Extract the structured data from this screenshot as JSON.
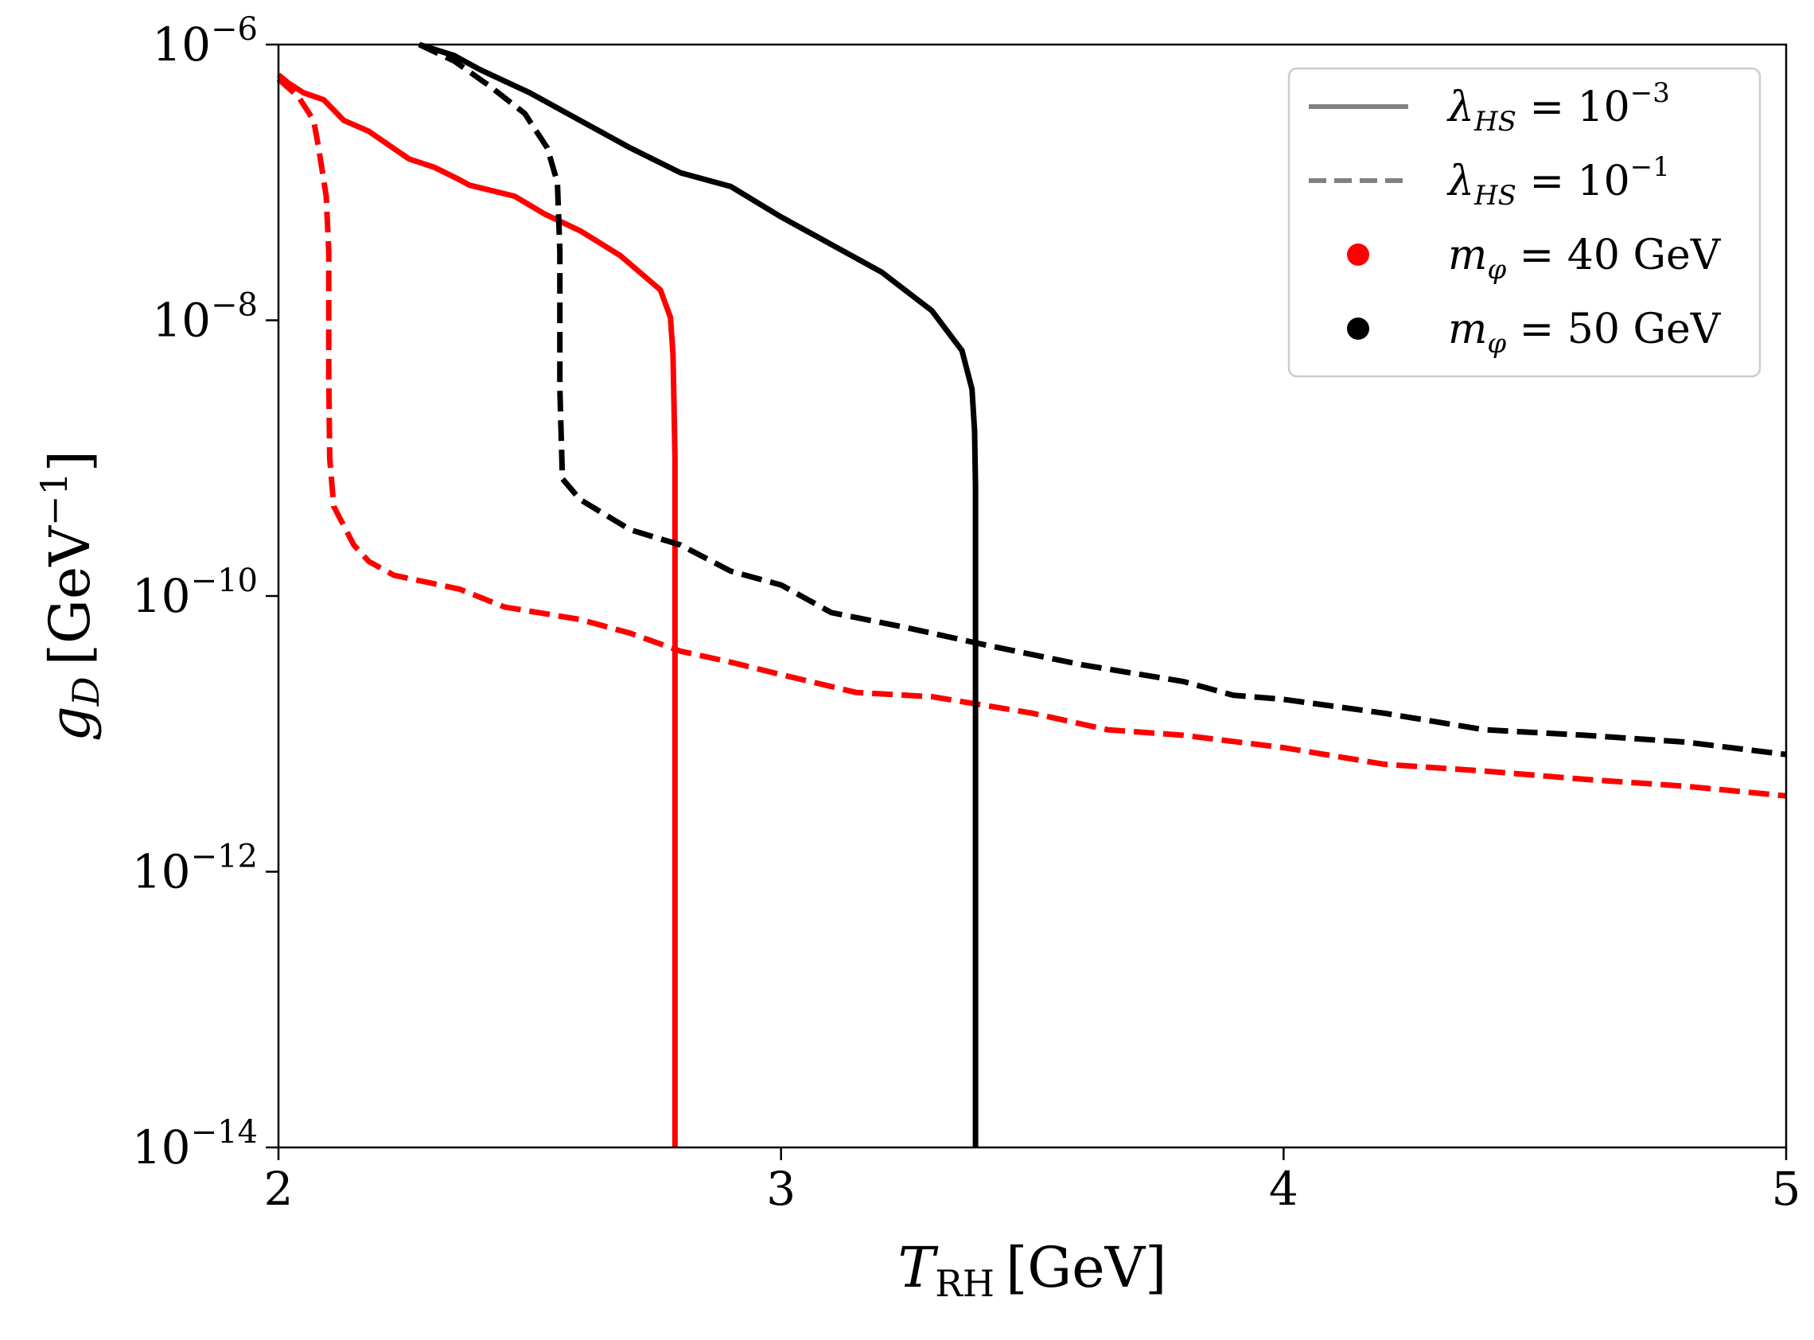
{
  "chart_data": {
    "type": "line",
    "title": "",
    "xlabel": {
      "symbol": "T",
      "sub": "RH",
      "unit": "[GeV]"
    },
    "ylabel": {
      "symbol": "g",
      "sub": "D",
      "unit_base": "[GeV",
      "unit_exp": "−1",
      "unit_close": "]"
    },
    "xscale": "linear",
    "yscale": "log",
    "xlim": [
      2,
      5
    ],
    "ylim_log10": [
      -14,
      -6
    ],
    "x_ticks": [
      {
        "value": 2,
        "label": "2"
      },
      {
        "value": 3,
        "label": "3"
      },
      {
        "value": 4,
        "label": "4"
      },
      {
        "value": 5,
        "label": "5"
      }
    ],
    "y_ticks": [
      {
        "log10": -6,
        "base": "10",
        "exp": "−6"
      },
      {
        "log10": -8,
        "base": "10",
        "exp": "−8"
      },
      {
        "log10": -10,
        "base": "10",
        "exp": "−10"
      },
      {
        "log10": -12,
        "base": "10",
        "exp": "−12"
      },
      {
        "log10": -14,
        "base": "10",
        "exp": "−14"
      }
    ],
    "grid": false,
    "legend": {
      "position": "top-right",
      "entries": [
        {
          "kind": "line",
          "style": "solid",
          "color": "#808080",
          "sym": "λ",
          "sub": "HS",
          "mid": " = 10",
          "exp": "−3"
        },
        {
          "kind": "line",
          "style": "dashed",
          "color": "#808080",
          "sym": "λ",
          "sub": "HS",
          "mid": " = 10",
          "exp": "−1"
        },
        {
          "kind": "dot",
          "color": "#ff0000",
          "sym": "m",
          "sub": "φ",
          "mid": " = 40 GeV",
          "exp": ""
        },
        {
          "kind": "dot",
          "color": "#000000",
          "sym": "m",
          "sub": "φ",
          "mid": " = 50 GeV",
          "exp": ""
        }
      ]
    },
    "series": [
      {
        "name": "m_phi = 40 GeV, lambda_HS = 1e-3",
        "color": "#ff0000",
        "style": "solid",
        "points": [
          [
            2.0,
            -6.22
          ],
          [
            2.02,
            -6.28
          ],
          [
            2.05,
            -6.35
          ],
          [
            2.09,
            -6.4
          ],
          [
            2.13,
            -6.55
          ],
          [
            2.18,
            -6.63
          ],
          [
            2.26,
            -6.83
          ],
          [
            2.31,
            -6.89
          ],
          [
            2.36,
            -6.98
          ],
          [
            2.38,
            -7.02
          ],
          [
            2.47,
            -7.1
          ],
          [
            2.53,
            -7.23
          ],
          [
            2.6,
            -7.35
          ],
          [
            2.68,
            -7.53
          ],
          [
            2.76,
            -7.78
          ],
          [
            2.78,
            -7.98
          ],
          [
            2.785,
            -8.25
          ],
          [
            2.787,
            -8.6
          ],
          [
            2.789,
            -9.0
          ],
          [
            2.789,
            -14.0
          ]
        ]
      },
      {
        "name": "m_phi = 40 GeV, lambda_HS = 1e-1",
        "color": "#ff0000",
        "style": "dashed",
        "points": [
          [
            2.0,
            -6.25
          ],
          [
            2.04,
            -6.38
          ],
          [
            2.07,
            -6.55
          ],
          [
            2.08,
            -6.75
          ],
          [
            2.095,
            -7.1
          ],
          [
            2.1,
            -7.5
          ],
          [
            2.1,
            -8.0
          ],
          [
            2.1,
            -8.4
          ],
          [
            2.102,
            -9.0
          ],
          [
            2.11,
            -9.35
          ],
          [
            2.15,
            -9.63
          ],
          [
            2.18,
            -9.75
          ],
          [
            2.23,
            -9.85
          ],
          [
            2.36,
            -9.95
          ],
          [
            2.45,
            -10.08
          ],
          [
            2.6,
            -10.17
          ],
          [
            2.7,
            -10.27
          ],
          [
            2.8,
            -10.4
          ],
          [
            2.9,
            -10.48
          ],
          [
            3.0,
            -10.57
          ],
          [
            3.15,
            -10.7
          ],
          [
            3.3,
            -10.73
          ],
          [
            3.5,
            -10.85
          ],
          [
            3.65,
            -10.97
          ],
          [
            3.8,
            -11.01
          ],
          [
            4.0,
            -11.1
          ],
          [
            4.2,
            -11.22
          ],
          [
            4.4,
            -11.27
          ],
          [
            4.6,
            -11.33
          ],
          [
            4.8,
            -11.38
          ],
          [
            5.0,
            -11.45
          ]
        ]
      },
      {
        "name": "m_phi = 50 GeV, lambda_HS = 1e-3",
        "color": "#000000",
        "style": "solid",
        "points": [
          [
            2.28,
            -6.0
          ],
          [
            2.35,
            -6.08
          ],
          [
            2.4,
            -6.18
          ],
          [
            2.5,
            -6.35
          ],
          [
            2.6,
            -6.55
          ],
          [
            2.7,
            -6.75
          ],
          [
            2.8,
            -6.93
          ],
          [
            2.9,
            -7.03
          ],
          [
            3.0,
            -7.25
          ],
          [
            3.1,
            -7.45
          ],
          [
            3.2,
            -7.65
          ],
          [
            3.3,
            -7.93
          ],
          [
            3.36,
            -8.22
          ],
          [
            3.38,
            -8.5
          ],
          [
            3.385,
            -8.8
          ],
          [
            3.387,
            -9.2
          ],
          [
            3.387,
            -14.0
          ]
        ]
      },
      {
        "name": "m_phi = 50 GeV, lambda_HS = 1e-1",
        "color": "#000000",
        "style": "dashed",
        "points": [
          [
            2.28,
            -6.0
          ],
          [
            2.35,
            -6.12
          ],
          [
            2.42,
            -6.3
          ],
          [
            2.49,
            -6.5
          ],
          [
            2.535,
            -6.75
          ],
          [
            2.555,
            -7.0
          ],
          [
            2.56,
            -7.5
          ],
          [
            2.56,
            -8.5
          ],
          [
            2.565,
            -9.15
          ],
          [
            2.6,
            -9.3
          ],
          [
            2.7,
            -9.52
          ],
          [
            2.8,
            -9.63
          ],
          [
            2.9,
            -9.82
          ],
          [
            3.0,
            -9.92
          ],
          [
            3.1,
            -10.12
          ],
          [
            3.25,
            -10.23
          ],
          [
            3.4,
            -10.35
          ],
          [
            3.6,
            -10.5
          ],
          [
            3.8,
            -10.62
          ],
          [
            3.9,
            -10.72
          ],
          [
            4.0,
            -10.75
          ],
          [
            4.2,
            -10.85
          ],
          [
            4.4,
            -10.97
          ],
          [
            4.6,
            -11.01
          ],
          [
            4.8,
            -11.06
          ],
          [
            5.0,
            -11.15
          ]
        ]
      }
    ]
  }
}
